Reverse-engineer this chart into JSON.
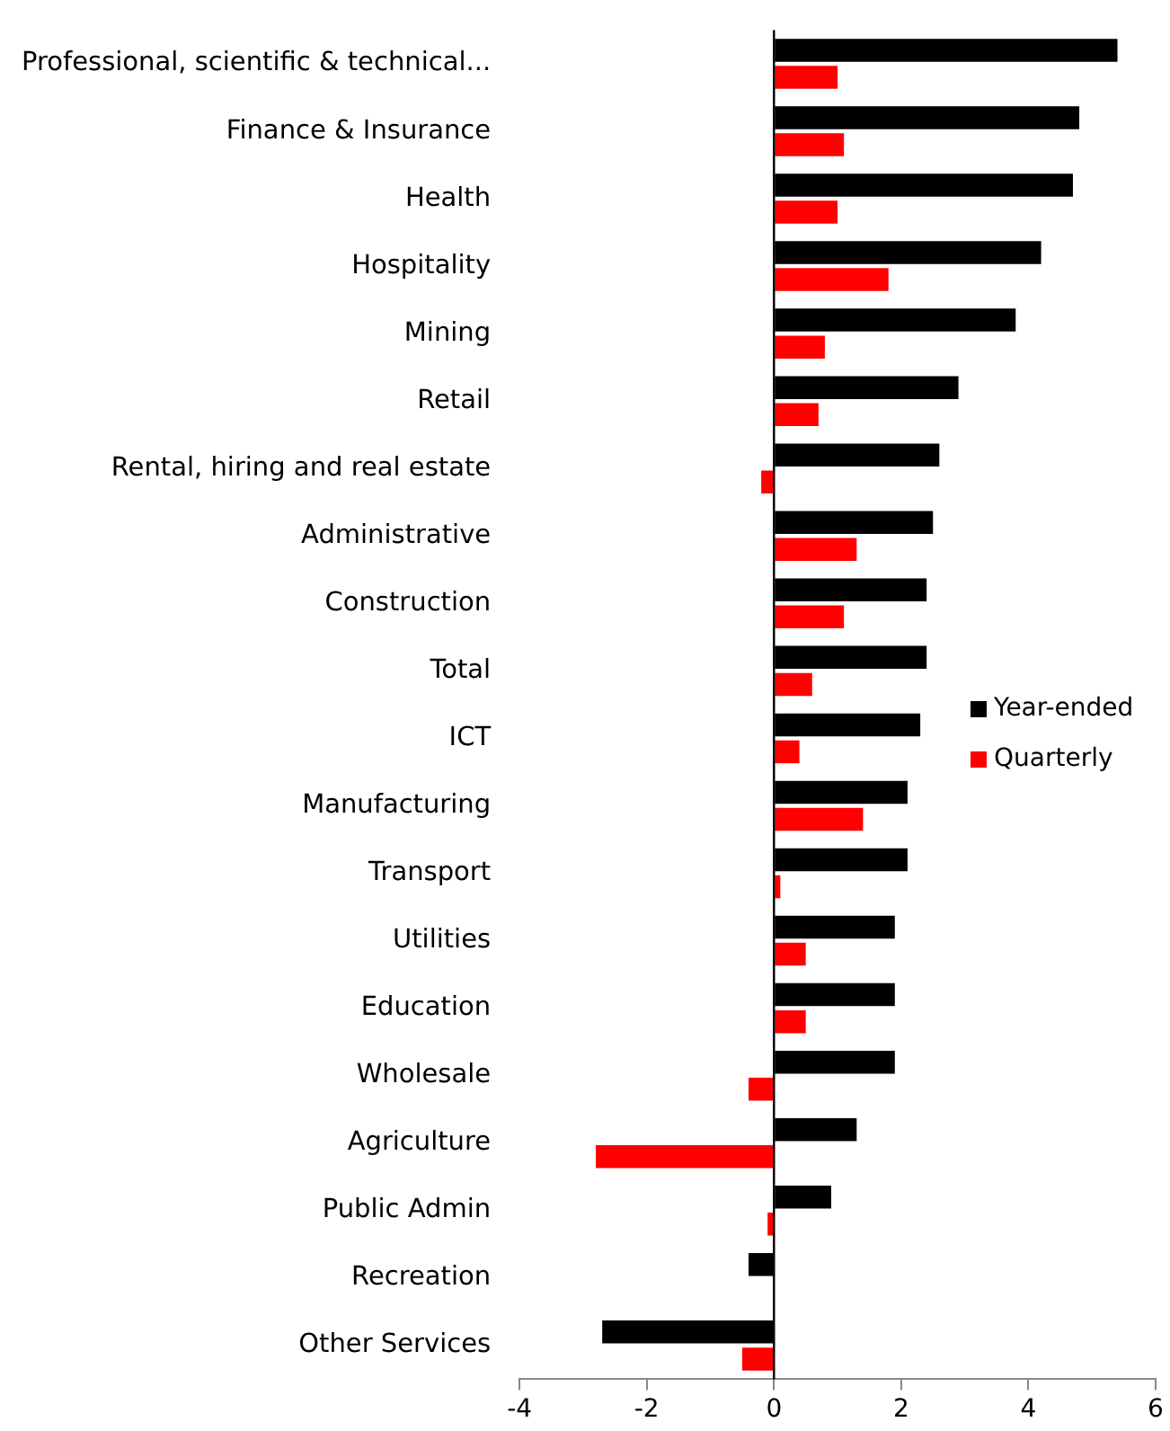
{
  "chart_data": {
    "type": "bar",
    "orientation": "horizontal",
    "categories": [
      "Professional, scientific & technical...",
      "Finance & Insurance",
      "Health",
      "Hospitality",
      "Mining",
      "Retail",
      "Rental, hiring and real estate",
      "Administrative",
      "Construction",
      "Total",
      "ICT",
      "Manufacturing",
      "Transport",
      "Utilities",
      "Education",
      "Wholesale",
      "Agriculture",
      "Public Admin",
      "Recreation",
      "Other Services"
    ],
    "series": [
      {
        "name": "Year-ended",
        "color": "#000000",
        "values": [
          5.4,
          4.8,
          4.7,
          4.2,
          3.8,
          2.9,
          2.6,
          2.5,
          2.4,
          2.4,
          2.3,
          2.1,
          2.1,
          1.9,
          1.9,
          1.9,
          1.3,
          0.9,
          -0.4,
          -2.7
        ]
      },
      {
        "name": "Quarterly",
        "color": "#ff0000",
        "values": [
          1.0,
          1.1,
          1.0,
          1.8,
          0.8,
          0.7,
          -0.2,
          1.3,
          1.1,
          0.6,
          0.4,
          1.4,
          0.1,
          0.5,
          0.5,
          -0.4,
          -2.8,
          -0.1,
          null,
          -0.5
        ]
      }
    ],
    "ref_lines": [
      {
        "axis": "x",
        "value": 0,
        "color": "#000000"
      }
    ],
    "xlim": [
      -4,
      6
    ],
    "xticks": [
      -4,
      -2,
      0,
      2,
      4,
      6
    ],
    "grid": false,
    "legend": "right"
  }
}
